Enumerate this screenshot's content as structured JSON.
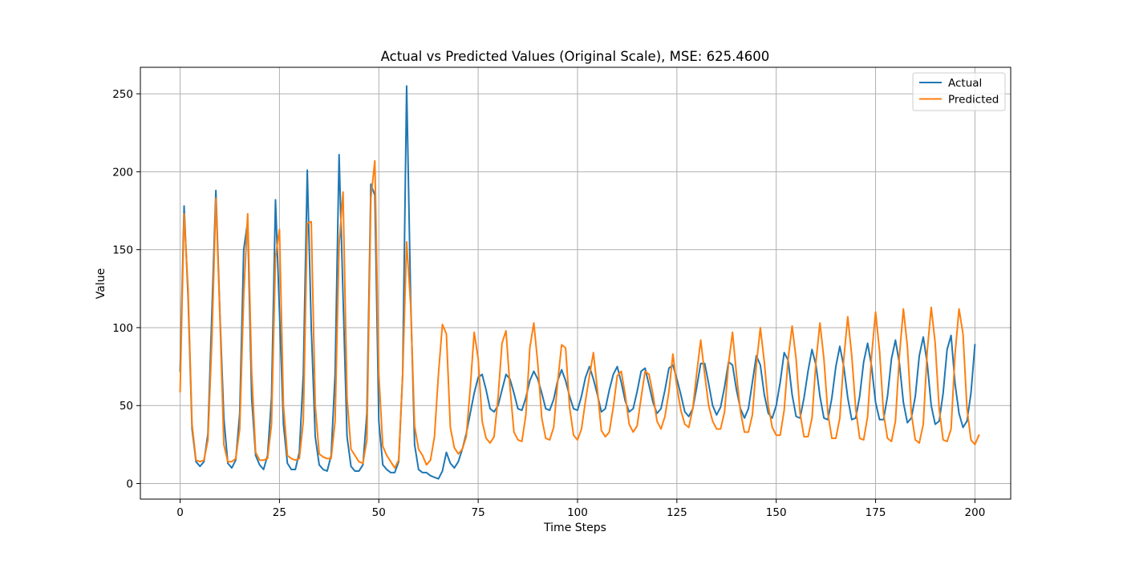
{
  "chart_data": {
    "type": "line",
    "title": "Actual vs Predicted Values (Original Scale), MSE: 625.4600",
    "xlabel": "Time Steps",
    "ylabel": "Value",
    "xlim": [
      -10,
      209
    ],
    "ylim": [
      -10,
      267
    ],
    "xticks": [
      0,
      25,
      50,
      75,
      100,
      125,
      150,
      175,
      200
    ],
    "yticks": [
      0,
      50,
      100,
      150,
      200,
      250
    ],
    "grid": true,
    "legend_position": "top-right",
    "series": [
      {
        "name": "Actual",
        "color": "#1f77b4",
        "values": [
          72,
          178,
          120,
          35,
          14,
          11,
          14,
          32,
          110,
          188,
          110,
          42,
          13,
          10,
          15,
          45,
          150,
          168,
          55,
          18,
          12,
          9,
          18,
          55,
          182,
          110,
          38,
          13,
          9,
          9,
          20,
          70,
          201,
          100,
          30,
          12,
          9,
          8,
          18,
          70,
          211,
          120,
          30,
          11,
          8,
          8,
          12,
          45,
          192,
          185,
          40,
          12,
          9,
          7,
          7,
          14,
          70,
          255,
          120,
          25,
          9,
          7,
          7,
          5,
          4,
          3,
          8,
          20,
          13,
          10,
          14,
          22,
          32,
          45,
          58,
          68,
          70,
          60,
          48,
          46,
          50,
          60,
          70,
          67,
          58,
          48,
          47,
          55,
          66,
          72,
          67,
          58,
          48,
          47,
          54,
          66,
          73,
          66,
          56,
          48,
          47,
          56,
          68,
          75,
          67,
          57,
          46,
          48,
          60,
          70,
          75,
          65,
          53,
          46,
          48,
          59,
          72,
          74,
          63,
          52,
          45,
          48,
          60,
          74,
          76,
          67,
          57,
          46,
          43,
          48,
          62,
          77,
          77,
          64,
          50,
          44,
          49,
          62,
          78,
          76,
          60,
          48,
          42,
          48,
          65,
          82,
          76,
          57,
          45,
          42,
          50,
          65,
          84,
          79,
          57,
          43,
          42,
          55,
          72,
          86,
          76,
          56,
          42,
          41,
          55,
          75,
          88,
          75,
          55,
          41,
          42,
          56,
          78,
          90,
          75,
          52,
          41,
          41,
          56,
          80,
          92,
          77,
          52,
          39,
          42,
          56,
          82,
          94,
          77,
          50,
          38,
          40,
          58,
          86,
          95,
          64,
          45,
          36,
          40,
          58,
          89
        ]
      },
      {
        "name": "Predicted",
        "color": "#ff7f0e",
        "values": [
          59,
          173,
          125,
          38,
          15,
          14,
          15,
          28,
          92,
          183,
          108,
          25,
          14,
          14,
          16,
          35,
          120,
          173,
          72,
          20,
          15,
          15,
          16,
          38,
          145,
          163,
          50,
          18,
          16,
          15,
          16,
          40,
          167,
          168,
          50,
          19,
          17,
          16,
          16,
          40,
          153,
          187,
          55,
          22,
          18,
          14,
          13,
          28,
          183,
          207,
          70,
          24,
          18,
          14,
          10,
          15,
          70,
          155,
          115,
          37,
          22,
          18,
          12,
          15,
          30,
          70,
          102,
          96,
          36,
          23,
          19,
          22,
          30,
          61,
          97,
          80,
          40,
          29,
          26,
          30,
          55,
          90,
          98,
          62,
          33,
          28,
          27,
          44,
          87,
          103,
          77,
          42,
          29,
          28,
          36,
          65,
          89,
          87,
          49,
          31,
          28,
          35,
          53,
          69,
          84,
          60,
          34,
          30,
          33,
          49,
          69,
          72,
          57,
          38,
          33,
          37,
          55,
          72,
          70,
          57,
          40,
          35,
          43,
          59,
          83,
          62,
          47,
          38,
          36,
          48,
          71,
          92,
          70,
          50,
          40,
          35,
          35,
          46,
          77,
          97,
          70,
          46,
          33,
          33,
          44,
          76,
          100,
          78,
          50,
          36,
          31,
          31,
          47,
          80,
          101,
          80,
          45,
          30,
          30,
          42,
          78,
          103,
          80,
          45,
          29,
          29,
          42,
          80,
          107,
          82,
          48,
          29,
          28,
          43,
          82,
          110,
          85,
          45,
          29,
          27,
          40,
          82,
          112,
          88,
          45,
          28,
          26,
          38,
          85,
          113,
          90,
          48,
          28,
          27,
          35,
          83,
          112,
          96,
          48,
          28,
          25,
          31
        ]
      }
    ]
  }
}
